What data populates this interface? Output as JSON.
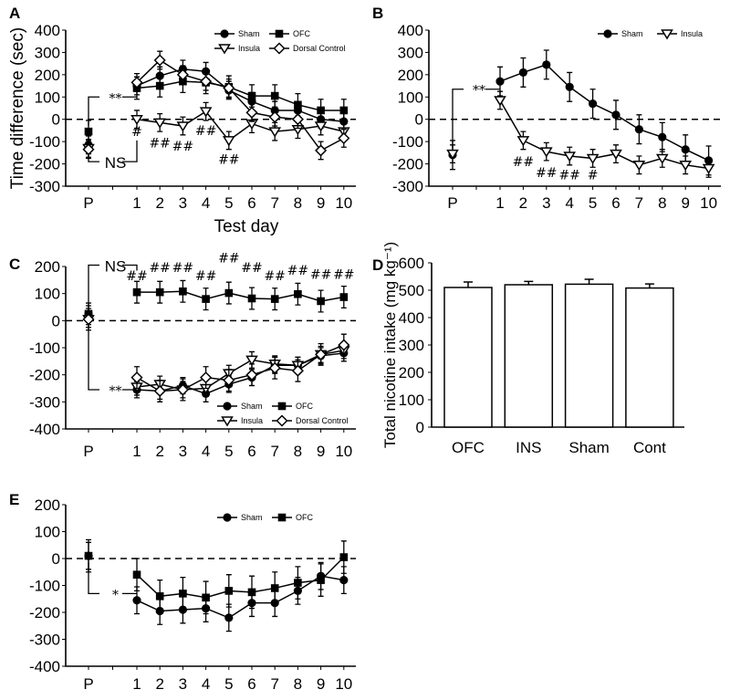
{
  "chart_data": [
    {
      "panel": "A",
      "type": "line",
      "ylabel": "Time difference (sec)",
      "xlabel": "Test day",
      "ylim": [
        -300,
        400
      ],
      "yticks": [
        400,
        300,
        200,
        100,
        0,
        -100,
        -200,
        -300
      ],
      "categories": [
        "P",
        "1",
        "2",
        "3",
        "4",
        "5",
        "6",
        "7",
        "8",
        "9",
        "10"
      ],
      "series": [
        {
          "name": "Sham",
          "marker": "circle",
          "values": [
            -115,
            150,
            195,
            225,
            215,
            130,
            80,
            40,
            40,
            0,
            -10
          ],
          "err": 40
        },
        {
          "name": "OFC",
          "marker": "square",
          "values": [
            -55,
            140,
            150,
            170,
            165,
            145,
            105,
            105,
            65,
            40,
            40
          ],
          "err": 50
        },
        {
          "name": "Insula",
          "marker": "triangle",
          "values": [
            -130,
            0,
            -15,
            -30,
            35,
            -95,
            -20,
            -55,
            -45,
            -30,
            -55
          ],
          "err": 40
        },
        {
          "name": "Dorsal Control",
          "marker": "diamond",
          "values": [
            -135,
            165,
            265,
            200,
            170,
            140,
            30,
            10,
            0,
            -140,
            -85
          ],
          "err": 40
        }
      ],
      "annotations": [
        {
          "text": "**",
          "type": "bracket-top",
          "y": 100
        },
        {
          "text": "NS",
          "type": "bracket-bottom",
          "y": -190
        },
        {
          "text": "#",
          "at": [
            1,
            -75
          ]
        },
        {
          "text": "##",
          "at": [
            2,
            -125
          ]
        },
        {
          "text": "##",
          "at": [
            3,
            -140
          ]
        },
        {
          "text": "##",
          "at": [
            4,
            -70
          ]
        },
        {
          "text": "##",
          "at": [
            5,
            -200
          ]
        }
      ]
    },
    {
      "panel": "B",
      "type": "line",
      "ylim": [
        -300,
        400
      ],
      "yticks": [
        400,
        300,
        200,
        100,
        0,
        -100,
        -200,
        -300
      ],
      "categories": [
        "P",
        "1",
        "2",
        "3",
        "4",
        "5",
        "6",
        "7",
        "8",
        "9",
        "10"
      ],
      "series": [
        {
          "name": "Sham",
          "marker": "circle",
          "values": [
            -160,
            170,
            210,
            245,
            145,
            70,
            20,
            -45,
            -80,
            -135,
            -185
          ],
          "err": 65
        },
        {
          "name": "Insula",
          "marker": "triangle",
          "values": [
            -155,
            85,
            -95,
            -145,
            -165,
            -175,
            -155,
            -205,
            -175,
            -205,
            -220
          ],
          "err": 40
        }
      ],
      "annotations": [
        {
          "text": "**",
          "type": "bracket-top",
          "y": 135
        },
        {
          "text": "##",
          "at": [
            2,
            -210
          ]
        },
        {
          "text": "##",
          "at": [
            3,
            -260
          ]
        },
        {
          "text": "##",
          "at": [
            4,
            -270
          ]
        },
        {
          "text": "#",
          "at": [
            5,
            -270
          ]
        }
      ]
    },
    {
      "panel": "C",
      "type": "line",
      "ylim": [
        -400,
        200
      ],
      "yticks": [
        200,
        100,
        0,
        -100,
        -200,
        -300,
        -400
      ],
      "categories": [
        "P",
        "1",
        "2",
        "3",
        "4",
        "5",
        "6",
        "7",
        "8",
        "9",
        "10"
      ],
      "series": [
        {
          "name": "Sham",
          "marker": "circle",
          "values": [
            25,
            -255,
            -260,
            -240,
            -270,
            -235,
            -210,
            -165,
            -165,
            -130,
            -120
          ],
          "err": 30
        },
        {
          "name": "OFC",
          "marker": "square",
          "values": [
            25,
            105,
            105,
            108,
            80,
            102,
            82,
            80,
            98,
            72,
            87
          ],
          "err": 40
        },
        {
          "name": "Insula",
          "marker": "triangle",
          "values": [
            5,
            -245,
            -235,
            -255,
            -250,
            -195,
            -145,
            -160,
            -165,
            -125,
            -110
          ],
          "err": 30
        },
        {
          "name": "Dorsal Control",
          "marker": "diamond",
          "values": [
            5,
            -210,
            -260,
            -255,
            -210,
            -220,
            -200,
            -175,
            -185,
            -125,
            -90
          ],
          "err": 40
        }
      ],
      "annotations": [
        {
          "text": "NS",
          "type": "bracket-top",
          "y": 205
        },
        {
          "text": "**",
          "type": "bracket-bottom",
          "y": -255
        },
        {
          "text": "##",
          "at": [
            1,
            150
          ]
        },
        {
          "text": "##",
          "at": [
            2,
            180
          ]
        },
        {
          "text": "##",
          "at": [
            3,
            180
          ]
        },
        {
          "text": "##",
          "at": [
            4,
            150
          ]
        },
        {
          "text": "##",
          "at": [
            5,
            215
          ]
        },
        {
          "text": "##",
          "at": [
            6,
            180
          ]
        },
        {
          "text": "##",
          "at": [
            7,
            150
          ]
        },
        {
          "text": "##",
          "at": [
            8,
            170
          ]
        },
        {
          "text": "##",
          "at": [
            9,
            155
          ]
        },
        {
          "text": "##",
          "at": [
            10,
            155
          ]
        }
      ]
    },
    {
      "panel": "D",
      "type": "bar",
      "ylabel": "Total nicotine intake (mg kg⁻¹)",
      "ylim": [
        0,
        600
      ],
      "yticks": [
        600,
        500,
        400,
        300,
        200,
        100,
        0
      ],
      "categories": [
        "OFC",
        "INS",
        "Sham",
        "Cont"
      ],
      "values": [
        510,
        520,
        522,
        508
      ],
      "err": [
        20,
        12,
        18,
        15
      ]
    },
    {
      "panel": "E",
      "type": "line",
      "ylim": [
        -400,
        200
      ],
      "yticks": [
        200,
        100,
        0,
        -100,
        -200,
        -300,
        -400
      ],
      "categories": [
        "P",
        "1",
        "2",
        "3",
        "4",
        "5",
        "6",
        "7",
        "8",
        "9",
        "10"
      ],
      "series": [
        {
          "name": "Sham",
          "marker": "circle",
          "values": [
            10,
            -155,
            -195,
            -190,
            -185,
            -220,
            -165,
            -165,
            -120,
            -65,
            -80
          ],
          "err": 50
        },
        {
          "name": "OFC",
          "marker": "square",
          "values": [
            10,
            -60,
            -140,
            -130,
            -145,
            -120,
            -125,
            -110,
            -90,
            -80,
            5
          ],
          "err": 60
        }
      ],
      "annotations": [
        {
          "text": "*",
          "type": "bracket-bottom",
          "y": -130
        }
      ]
    }
  ]
}
